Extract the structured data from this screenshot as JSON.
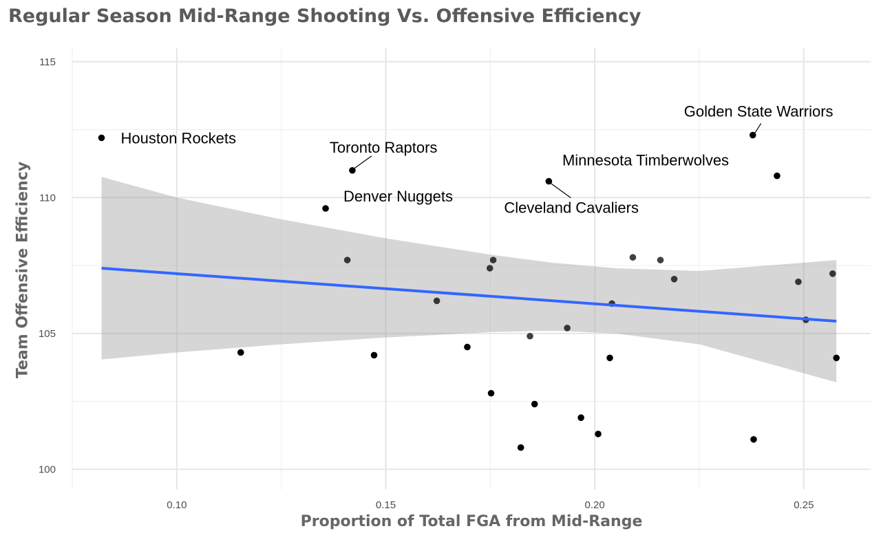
{
  "chart_data": {
    "type": "scatter",
    "title": "Regular Season Mid-Range Shooting Vs. Offensive Efficiency",
    "xlabel": "Proportion of Total FGA from Mid-Range",
    "ylabel": "Team Offensive Efficiency",
    "xlim": [
      0.075,
      0.266
    ],
    "ylim": [
      99.25,
      115.5
    ],
    "xticks": [
      "0.10",
      "0.15",
      "0.20",
      "0.25"
    ],
    "yticks": [
      "100",
      "105",
      "110",
      "115"
    ],
    "grid": true,
    "points": [
      {
        "x": 0.082,
        "y": 112.2,
        "label": "Houston Rockets"
      },
      {
        "x": 0.142,
        "y": 111.0,
        "label": "Toronto Raptors"
      },
      {
        "x": 0.1356,
        "y": 109.6,
        "label": "Denver Nuggets"
      },
      {
        "x": 0.189,
        "y": 110.6,
        "label": "Cleveland Cavaliers"
      },
      {
        "x": 0.2378,
        "y": 112.3,
        "label": "Golden State Warriors"
      },
      {
        "x": 0.2436,
        "y": 110.8,
        "label": "Minnesota Timberwolves"
      },
      {
        "x": 0.1408,
        "y": 107.7
      },
      {
        "x": 0.1622,
        "y": 106.2
      },
      {
        "x": 0.1757,
        "y": 107.7
      },
      {
        "x": 0.1749,
        "y": 107.4
      },
      {
        "x": 0.2091,
        "y": 107.8
      },
      {
        "x": 0.2157,
        "y": 107.7
      },
      {
        "x": 0.219,
        "y": 107.0
      },
      {
        "x": 0.2041,
        "y": 106.1
      },
      {
        "x": 0.1934,
        "y": 105.2
      },
      {
        "x": 0.1845,
        "y": 104.9
      },
      {
        "x": 0.1153,
        "y": 104.3
      },
      {
        "x": 0.1472,
        "y": 104.2
      },
      {
        "x": 0.1695,
        "y": 104.5
      },
      {
        "x": 0.2036,
        "y": 104.1
      },
      {
        "x": 0.1752,
        "y": 102.8
      },
      {
        "x": 0.1856,
        "y": 102.4
      },
      {
        "x": 0.1967,
        "y": 101.9
      },
      {
        "x": 0.2008,
        "y": 101.3
      },
      {
        "x": 0.1823,
        "y": 100.8
      },
      {
        "x": 0.238,
        "y": 101.1
      },
      {
        "x": 0.2487,
        "y": 106.9
      },
      {
        "x": 0.2569,
        "y": 107.2
      },
      {
        "x": 0.2505,
        "y": 105.5
      },
      {
        "x": 0.2578,
        "y": 104.1
      }
    ],
    "trend_line": {
      "x": [
        0.082,
        0.2578
      ],
      "y": [
        107.4,
        105.45
      ],
      "color": "#3366FF"
    },
    "confidence_band": {
      "x": [
        0.082,
        0.1,
        0.125,
        0.15,
        0.175,
        0.19,
        0.205,
        0.225,
        0.2578
      ],
      "lower": [
        104.04,
        104.3,
        104.6,
        104.85,
        105.05,
        105.1,
        105.0,
        104.6,
        103.2
      ],
      "upper": [
        110.76,
        110.0,
        109.2,
        108.5,
        107.9,
        107.6,
        107.4,
        107.3,
        107.7
      ],
      "color": "#999999"
    }
  }
}
